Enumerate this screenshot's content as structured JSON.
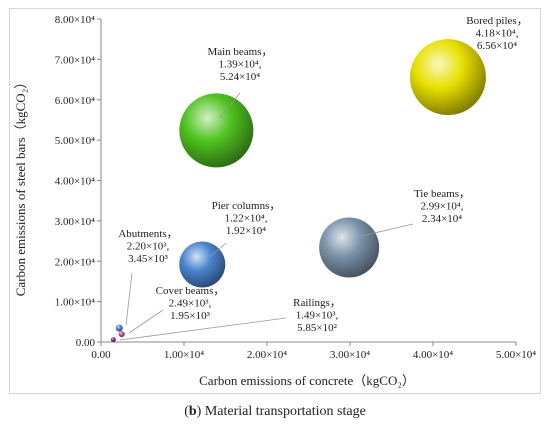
{
  "chart_data": {
    "type": "scatter",
    "xlabel": "Carbon emissions of concrete（kgCO₂）",
    "ylabel": "Carbon emissions of steel bars（kgCO₂）",
    "xlim": [
      0,
      50000
    ],
    "ylim": [
      0,
      80000
    ],
    "x_ticks": [
      {
        "value": 0,
        "label": "0.00"
      },
      {
        "value": 10000,
        "label": "1.00×10⁴"
      },
      {
        "value": 20000,
        "label": "2.00×10⁴"
      },
      {
        "value": 30000,
        "label": "3.00×10⁴"
      },
      {
        "value": 40000,
        "label": "4.00×10⁴"
      },
      {
        "value": 50000,
        "label": "5.00×10⁴"
      }
    ],
    "y_ticks": [
      {
        "value": 0,
        "label": "0.00"
      },
      {
        "value": 10000,
        "label": "1.00×10⁴"
      },
      {
        "value": 20000,
        "label": "2.00×10⁴"
      },
      {
        "value": 30000,
        "label": "3.00×10⁴"
      },
      {
        "value": 40000,
        "label": "4.00×10⁴"
      },
      {
        "value": 50000,
        "label": "5.00×10⁴"
      },
      {
        "value": 60000,
        "label": "6.00×10⁴"
      },
      {
        "value": 70000,
        "label": "7.00×10⁴"
      },
      {
        "value": 80000,
        "label": "8.00×10⁴"
      }
    ],
    "grid": false,
    "points": [
      {
        "name": "Bored piles",
        "x": 41800,
        "y": 65600,
        "color": "#e8e000",
        "label_lines": [
          "Bored piles，",
          "4.18×10⁴,",
          "6.56×10⁴"
        ]
      },
      {
        "name": "Main beams",
        "x": 13900,
        "y": 52400,
        "color": "#4fc31f",
        "label_lines": [
          "Main beams，",
          "1.39×10⁴,",
          "5.24×10⁴"
        ]
      },
      {
        "name": "Tie beams",
        "x": 29900,
        "y": 23400,
        "color": "#7b93aa",
        "label_lines": [
          "Tie beams，",
          "2.99×10⁴,",
          "2.34×10⁴"
        ]
      },
      {
        "name": "Pier columns",
        "x": 12200,
        "y": 19200,
        "color": "#4a84cf",
        "label_lines": [
          "Pier columns，",
          "1.22×10⁴,",
          "1.92×10⁴"
        ]
      },
      {
        "name": "Abutments",
        "x": 2200,
        "y": 3450,
        "color": "#4a84cf",
        "label_lines": [
          "Abutments，",
          "2.20×10³,",
          "3.45×10³"
        ]
      },
      {
        "name": "Cover beams",
        "x": 2490,
        "y": 1950,
        "color": "#c0508a",
        "label_lines": [
          "Cover beams，",
          "2.49×10³,",
          "1.95×10³"
        ]
      },
      {
        "name": "Railings",
        "x": 1490,
        "y": 585,
        "color": "#7a2fa6",
        "label_lines": [
          "Railings，",
          "1.49×10³,",
          "5.85×10²"
        ]
      }
    ]
  },
  "caption": {
    "prefix": "(",
    "bold": "b",
    "suffix": ") Material transportation stage"
  }
}
